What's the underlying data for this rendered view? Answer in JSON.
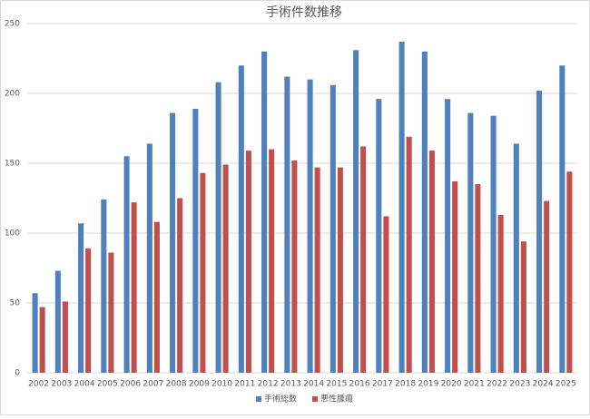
{
  "chart_data": {
    "type": "bar",
    "title": "手術件数推移",
    "categories": [
      "2002",
      "2003",
      "2004",
      "2005",
      "2006",
      "2007",
      "2008",
      "2009",
      "2010",
      "2011",
      "2012",
      "2013",
      "2014",
      "2015",
      "2016",
      "2017",
      "2018",
      "2019",
      "2020",
      "2021",
      "2022",
      "2023",
      "2024",
      "2025"
    ],
    "series": [
      {
        "name": "手術総数",
        "color": "#4f81bd",
        "values": [
          57,
          73,
          107,
          124,
          155,
          164,
          186,
          189,
          208,
          220,
          230,
          212,
          210,
          206,
          231,
          196,
          237,
          230,
          196,
          186,
          184,
          164,
          202,
          220
        ]
      },
      {
        "name": "悪性腫瘍",
        "color": "#c0504d",
        "values": [
          47,
          51,
          89,
          86,
          122,
          108,
          125,
          143,
          149,
          159,
          160,
          152,
          147,
          147,
          162,
          112,
          169,
          159,
          137,
          135,
          113,
          94,
          123,
          144
        ]
      }
    ],
    "ylim": [
      0,
      250
    ],
    "yticks": [
      0,
      50,
      100,
      150,
      200,
      250
    ],
    "grid": true,
    "legend": "bottom"
  }
}
